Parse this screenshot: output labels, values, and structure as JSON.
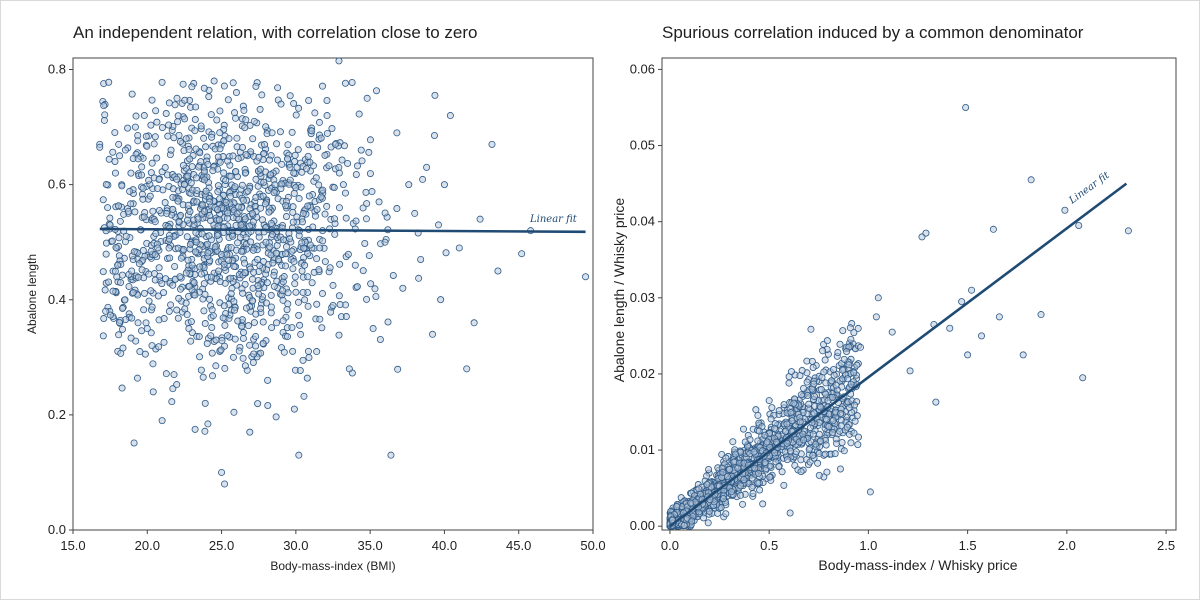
{
  "chart_data": [
    {
      "type": "scatter",
      "title": "An independent relation, with correlation close to zero",
      "xlabel": "Body-mass-index (BMI)",
      "ylabel": "Abalone length",
      "xlim": [
        15.0,
        50.0
      ],
      "ylim": [
        0.0,
        0.82
      ],
      "xticks": [
        "15.0",
        "20.0",
        "25.0",
        "30.0",
        "35.0",
        "40.0",
        "45.0",
        "50.0"
      ],
      "xtick_values": [
        15,
        20,
        25,
        30,
        35,
        40,
        45,
        50
      ],
      "yticks": [
        "0.0",
        "0.2",
        "0.4",
        "0.6",
        "0.8"
      ],
      "ytick_values": [
        0.0,
        0.2,
        0.4,
        0.6,
        0.8
      ],
      "grid": false,
      "annotation": "Linear fit",
      "fit": {
        "x": [
          16.8,
          49.5
        ],
        "y": [
          0.523,
          0.518
        ]
      },
      "series": [
        {
          "points": [
            [
              16.8,
              0.67
            ],
            [
              16.8,
              0.665
            ],
            [
              17.2,
              0.38
            ],
            [
              17.5,
              0.53
            ],
            [
              18.0,
              0.46
            ],
            [
              18.2,
              0.43
            ],
            [
              18.5,
              0.4
            ],
            [
              18.9,
              0.62
            ],
            [
              19.2,
              0.7
            ],
            [
              19.5,
              0.31
            ],
            [
              19.8,
              0.72
            ],
            [
              20.0,
              0.35
            ],
            [
              20.2,
              0.58
            ],
            [
              20.4,
              0.24
            ],
            [
              20.7,
              0.49
            ],
            [
              21.0,
              0.19
            ],
            [
              21.3,
              0.55
            ],
            [
              21.6,
              0.66
            ],
            [
              21.8,
              0.27
            ],
            [
              22.0,
              0.75
            ],
            [
              22.2,
              0.44
            ],
            [
              22.5,
              0.6
            ],
            [
              22.8,
              0.35
            ],
            [
              23.0,
              0.77
            ],
            [
              23.3,
              0.5
            ],
            [
              23.6,
              0.64
            ],
            [
              23.9,
              0.22
            ],
            [
              24.2,
              0.57
            ],
            [
              24.5,
              0.78
            ],
            [
              24.8,
              0.45
            ],
            [
              25.0,
              0.1
            ],
            [
              25.2,
              0.08
            ],
            [
              25.5,
              0.68
            ],
            [
              25.8,
              0.3
            ],
            [
              26.0,
              0.76
            ],
            [
              26.3,
              0.53
            ],
            [
              26.6,
              0.62
            ],
            [
              26.9,
              0.17
            ],
            [
              27.2,
              0.71
            ],
            [
              27.5,
              0.41
            ],
            [
              27.8,
              0.58
            ],
            [
              28.1,
              0.26
            ],
            [
              28.4,
              0.69
            ],
            [
              28.7,
              0.36
            ],
            [
              29.0,
              0.74
            ],
            [
              29.3,
              0.48
            ],
            [
              29.6,
              0.63
            ],
            [
              29.9,
              0.21
            ],
            [
              30.2,
              0.13
            ],
            [
              30.5,
              0.55
            ],
            [
              30.8,
              0.44
            ],
            [
              31.1,
              0.67
            ],
            [
              31.4,
              0.31
            ],
            [
              31.8,
              0.52
            ],
            [
              32.1,
              0.72
            ],
            [
              32.5,
              0.39
            ],
            [
              32.9,
              0.815
            ],
            [
              33.2,
              0.6
            ],
            [
              33.6,
              0.28
            ],
            [
              34.0,
              0.46
            ],
            [
              34.4,
              0.66
            ],
            [
              34.8,
              0.75
            ],
            [
              35.2,
              0.35
            ],
            [
              35.6,
              0.57
            ],
            [
              36.0,
              0.5
            ],
            [
              36.4,
              0.13
            ],
            [
              36.8,
              0.69
            ],
            [
              37.2,
              0.42
            ],
            [
              37.6,
              0.6
            ],
            [
              38.0,
              0.55
            ],
            [
              38.4,
              0.47
            ],
            [
              38.8,
              0.63
            ],
            [
              39.2,
              0.34
            ],
            [
              39.6,
              0.53
            ],
            [
              40.0,
              0.6
            ],
            [
              40.4,
              0.72
            ],
            [
              41.0,
              0.49
            ],
            [
              41.5,
              0.28
            ],
            [
              42.0,
              0.36
            ],
            [
              42.4,
              0.54
            ],
            [
              43.2,
              0.67
            ],
            [
              43.6,
              0.45
            ],
            [
              45.2,
              0.48
            ],
            [
              45.8,
              0.52
            ],
            [
              49.5,
              0.44
            ]
          ]
        }
      ]
    },
    {
      "type": "scatter",
      "title": "Spurious correlation induced by a common denominator",
      "xlabel": "Body-mass-index / Whisky price",
      "ylabel": "Abalone length / Whisky price",
      "xlim": [
        -0.04,
        2.55
      ],
      "ylim": [
        -0.0005,
        0.0615
      ],
      "xticks": [
        "0.0",
        "0.5",
        "1.0",
        "1.5",
        "2.0",
        "2.5"
      ],
      "xtick_values": [
        0.0,
        0.5,
        1.0,
        1.5,
        2.0,
        2.5
      ],
      "yticks": [
        "0.00",
        "0.01",
        "0.02",
        "0.03",
        "0.04",
        "0.05",
        "0.06"
      ],
      "ytick_values": [
        0.0,
        0.01,
        0.02,
        0.03,
        0.04,
        0.05,
        0.06
      ],
      "grid": false,
      "annotation": "Linear fit",
      "fit": {
        "x": [
          0.0,
          2.3
        ],
        "y": [
          0.0,
          0.045
        ]
      },
      "series": [
        {
          "points": [
            [
              1.49,
              0.055
            ],
            [
              1.82,
              0.0455
            ],
            [
              1.99,
              0.0415
            ],
            [
              2.06,
              0.0395
            ],
            [
              2.31,
              0.0388
            ],
            [
              1.27,
              0.038
            ],
            [
              1.29,
              0.0385
            ],
            [
              1.63,
              0.039
            ],
            [
              1.52,
              0.031
            ],
            [
              1.47,
              0.0295
            ],
            [
              1.41,
              0.026
            ],
            [
              1.33,
              0.0265
            ],
            [
              1.57,
              0.025
            ],
            [
              1.66,
              0.0275
            ],
            [
              1.87,
              0.0278
            ],
            [
              1.5,
              0.0225
            ],
            [
              2.08,
              0.0195
            ],
            [
              1.78,
              0.0225
            ],
            [
              1.34,
              0.0163
            ],
            [
              1.21,
              0.0204
            ],
            [
              1.12,
              0.0255
            ],
            [
              1.04,
              0.0275
            ],
            [
              1.05,
              0.03
            ],
            [
              0.96,
              0.0235
            ],
            [
              0.87,
              0.0205
            ],
            [
              0.86,
              0.0148
            ],
            [
              0.95,
              0.0117
            ],
            [
              1.01,
              0.0045
            ],
            [
              0.82,
              0.0123
            ],
            [
              0.72,
              0.0093
            ],
            [
              0.6,
              0.0188
            ],
            [
              0.5,
              0.0165
            ],
            [
              0.45,
              0.0125
            ]
          ]
        }
      ]
    }
  ]
}
